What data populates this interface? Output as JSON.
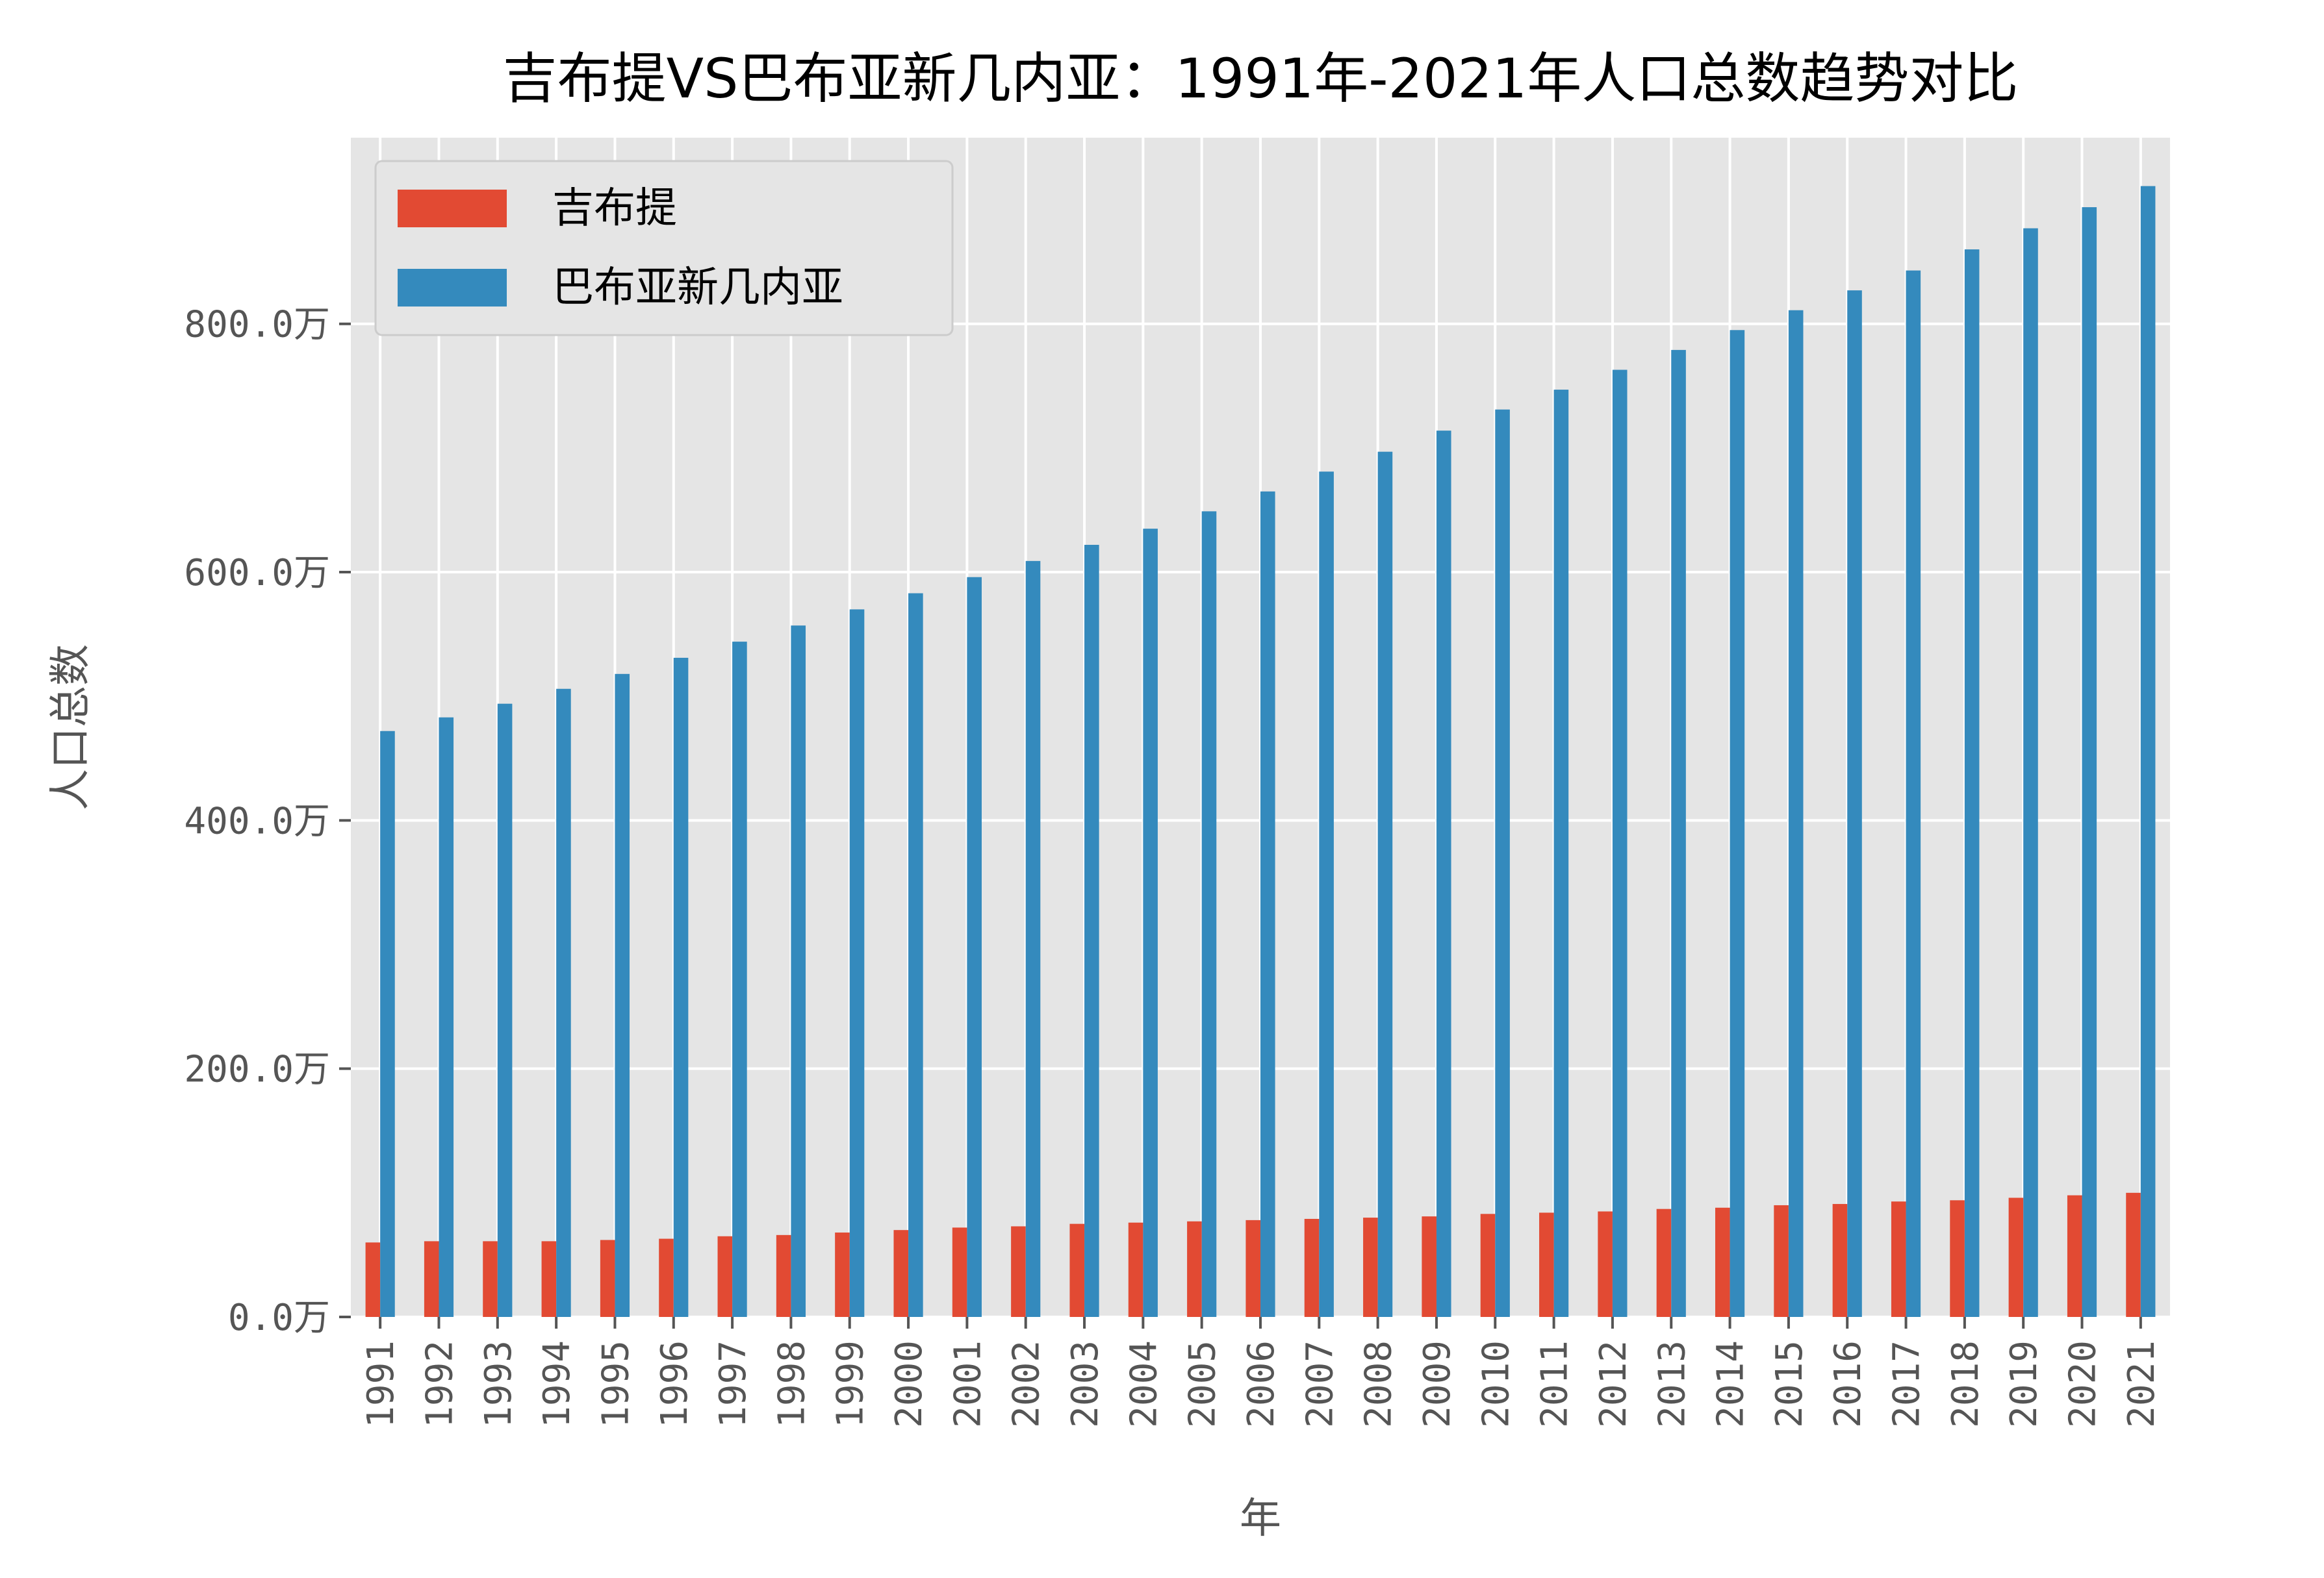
{
  "chart_data": {
    "type": "bar",
    "title": "吉布提VS巴布亚新几内亚：1991年-2021年人口总数趋势对比",
    "xlabel": "年",
    "ylabel": "人口总数",
    "ylim": [
      0,
      950
    ],
    "yticks": [
      0,
      200,
      400,
      600,
      800
    ],
    "ytick_labels": [
      "0.0万",
      "200.0万",
      "400.0万",
      "600.0万",
      "800.0万"
    ],
    "grid": true,
    "legend_position": "top-left",
    "categories": [
      "1991",
      "1992",
      "1993",
      "1994",
      "1995",
      "1996",
      "1997",
      "1998",
      "1999",
      "2000",
      "2001",
      "2002",
      "2003",
      "2004",
      "2005",
      "2006",
      "2007",
      "2008",
      "2009",
      "2010",
      "2011",
      "2012",
      "2013",
      "2014",
      "2015",
      "2016",
      "2017",
      "2018",
      "2019",
      "2020",
      "2021"
    ],
    "series": [
      {
        "name": "吉布提",
        "color": "#E24A33",
        "values": [
          60,
          61,
          61,
          61,
          62,
          63,
          65,
          66,
          68,
          70,
          72,
          73,
          75,
          76,
          77,
          78,
          79,
          80,
          81,
          83,
          84,
          85,
          87,
          88,
          90,
          91,
          93,
          94,
          96,
          98,
          100
        ]
      },
      {
        "name": "巴布亚新几内亚",
        "color": "#348ABD",
        "values": [
          472,
          483,
          494,
          506,
          518,
          531,
          544,
          557,
          570,
          583,
          596,
          609,
          622,
          635,
          649,
          665,
          681,
          697,
          714,
          731,
          747,
          763,
          779,
          795,
          811,
          827,
          843,
          860,
          877,
          894,
          911
        ]
      }
    ]
  }
}
